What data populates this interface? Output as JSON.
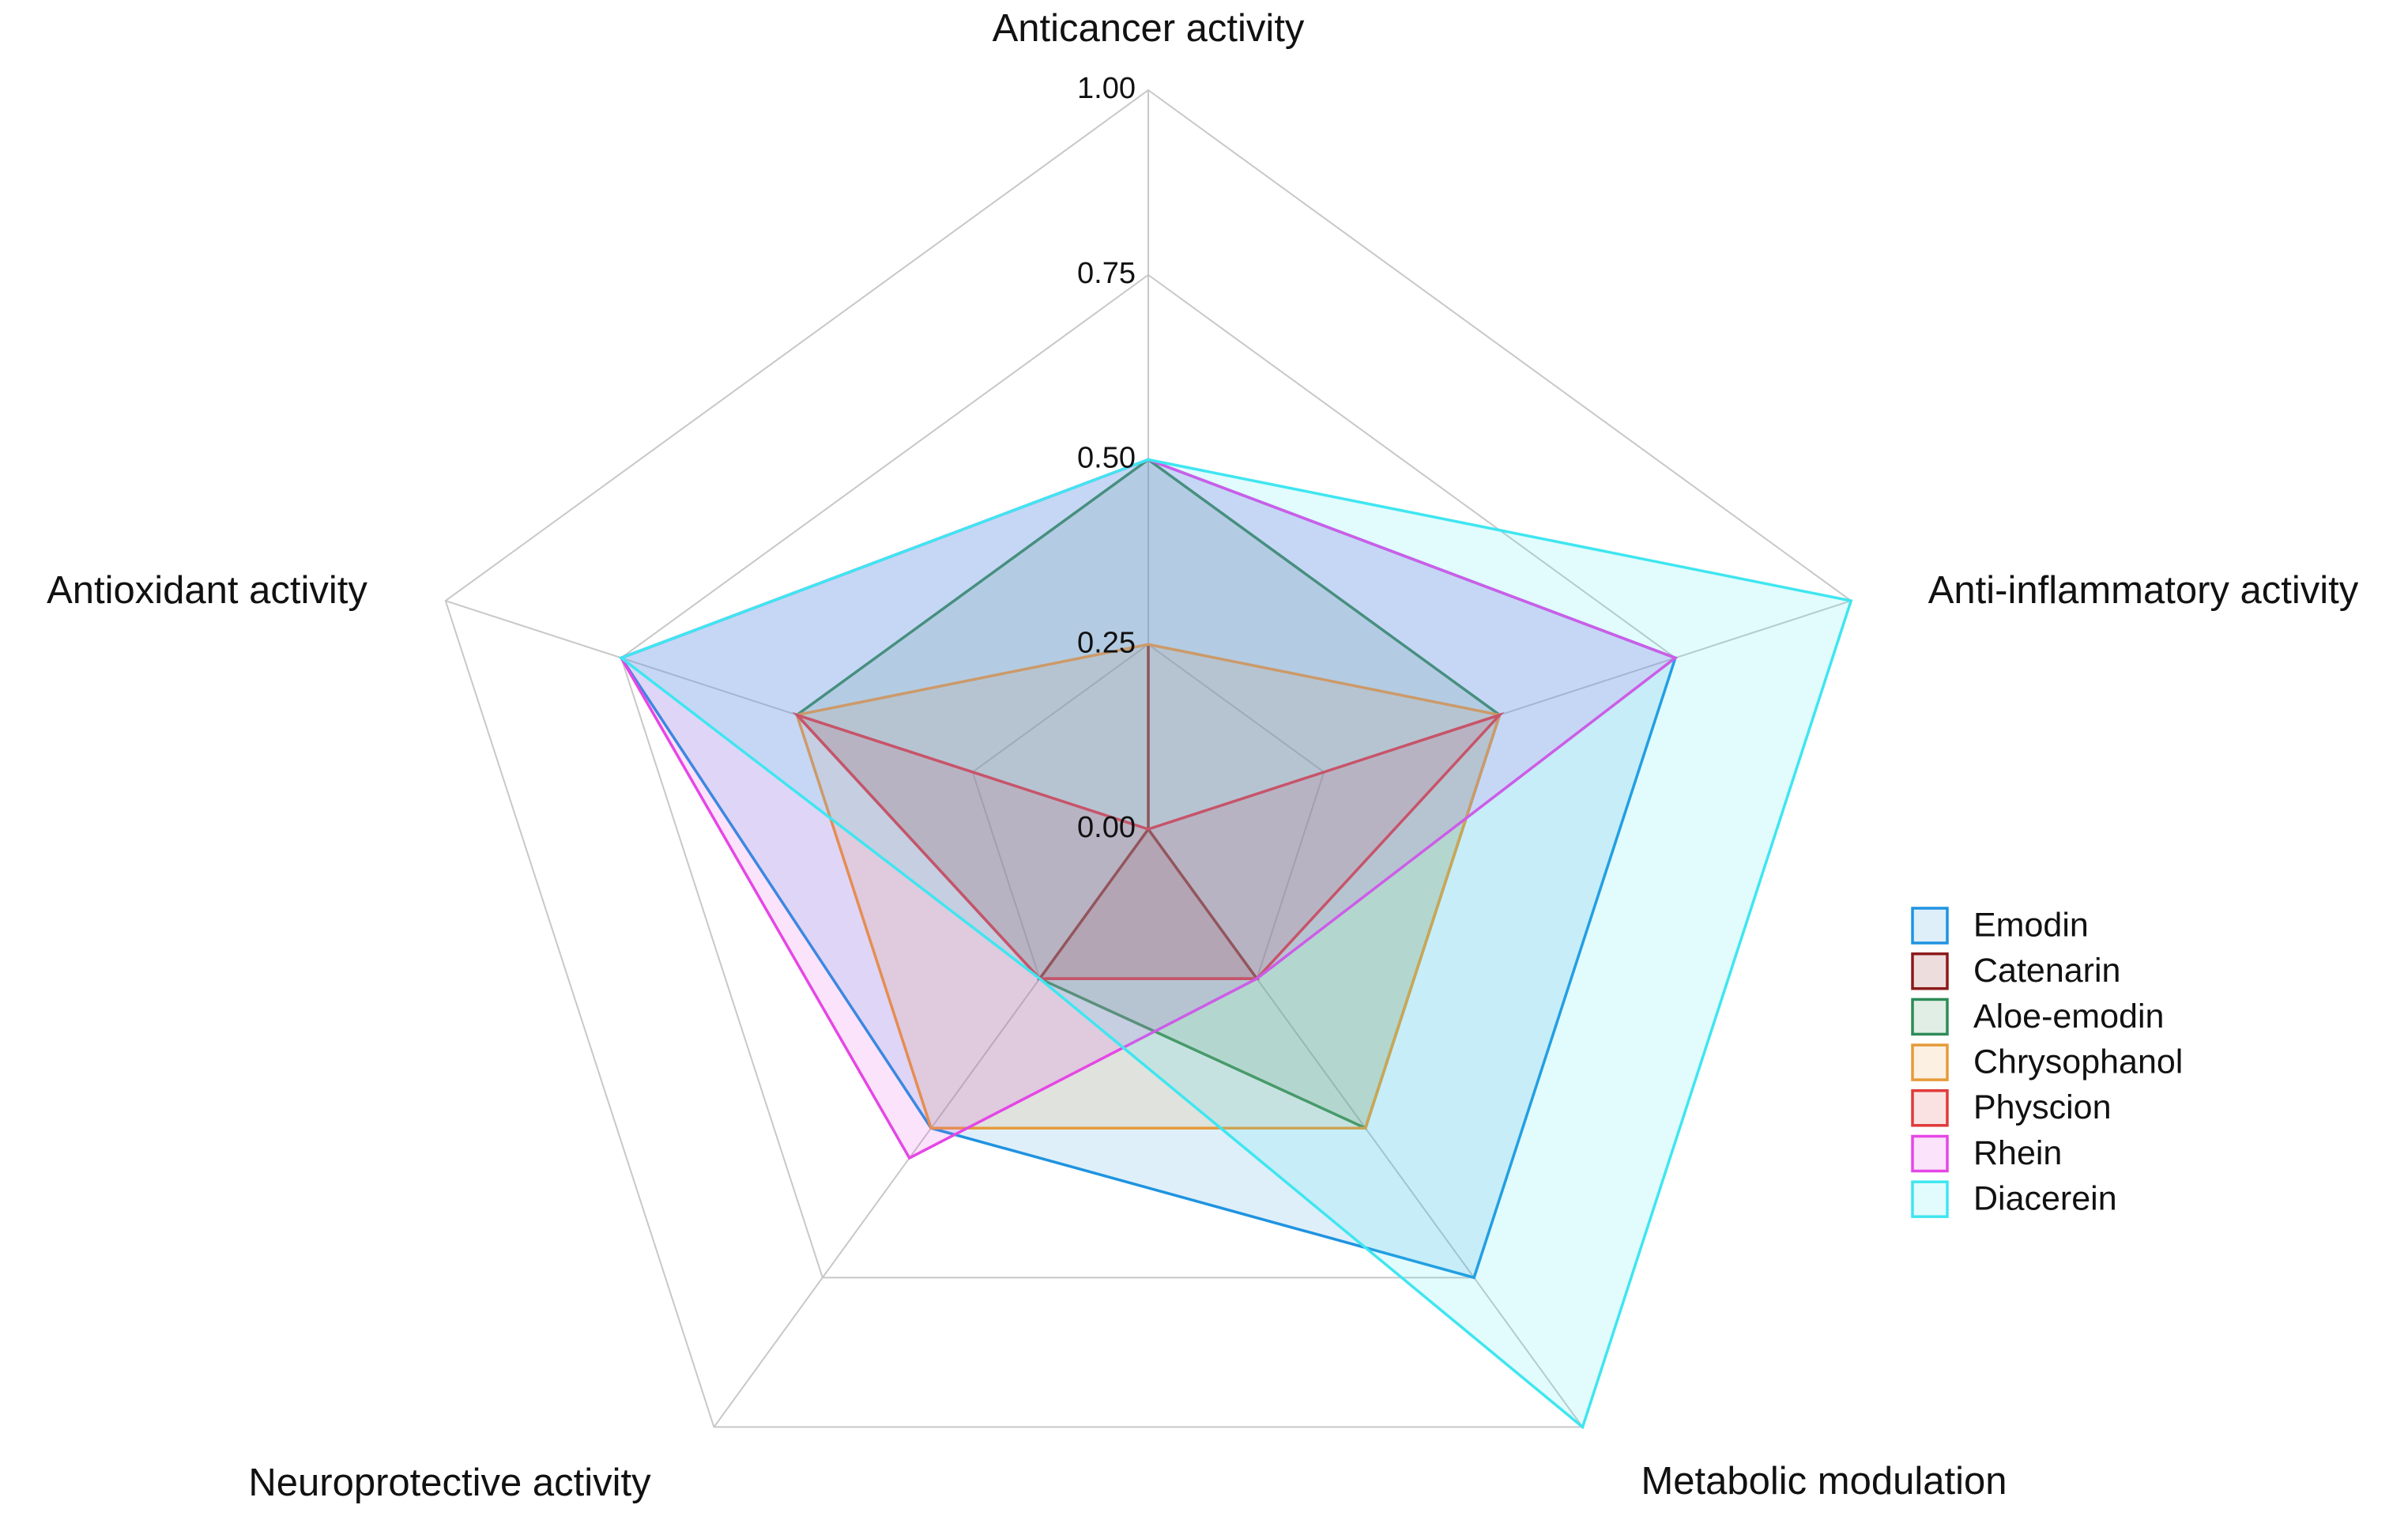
{
  "chart_data": {
    "type": "radar",
    "categories": [
      "Anticancer activity",
      "Anti-inflammatory activity",
      "Metabolic modulation",
      "Neuroprotective activity",
      "Antioxidant activity"
    ],
    "series": [
      {
        "name": "Emodin",
        "color": "#1f93e0",
        "values": [
          0.5,
          0.75,
          0.75,
          0.5,
          0.75
        ]
      },
      {
        "name": "Catenarin",
        "color": "#8b1a1a",
        "values": [
          0.25,
          0,
          0.25,
          0.25,
          0
        ]
      },
      {
        "name": "Aloe-emodin",
        "color": "#2e8b57",
        "values": [
          0.5,
          0.5,
          0.5,
          0.25,
          0.5
        ]
      },
      {
        "name": "Chrysophanol",
        "color": "#e69a3a",
        "values": [
          0.25,
          0.5,
          0.5,
          0.5,
          0.5
        ]
      },
      {
        "name": "Physcion",
        "color": "#e03a3a",
        "values": [
          0,
          0.5,
          0.25,
          0.25,
          0.5
        ]
      },
      {
        "name": "Rhein",
        "color": "#e546e5",
        "values": [
          0.5,
          0.75,
          0.25,
          0.55,
          0.75
        ]
      },
      {
        "name": "Diacerein",
        "color": "#3fe6f0",
        "values": [
          0.5,
          1,
          1,
          0.25,
          0.75
        ]
      }
    ],
    "rlim": [
      0,
      1
    ],
    "rticks": [
      {
        "value": 0,
        "label": "0.00"
      },
      {
        "value": 0.25,
        "label": "0.25"
      },
      {
        "value": 0.5,
        "label": "0.50"
      },
      {
        "value": 0.75,
        "label": "0.75"
      },
      {
        "value": 1,
        "label": "1.00"
      }
    ],
    "grid": true,
    "legend": "right"
  }
}
